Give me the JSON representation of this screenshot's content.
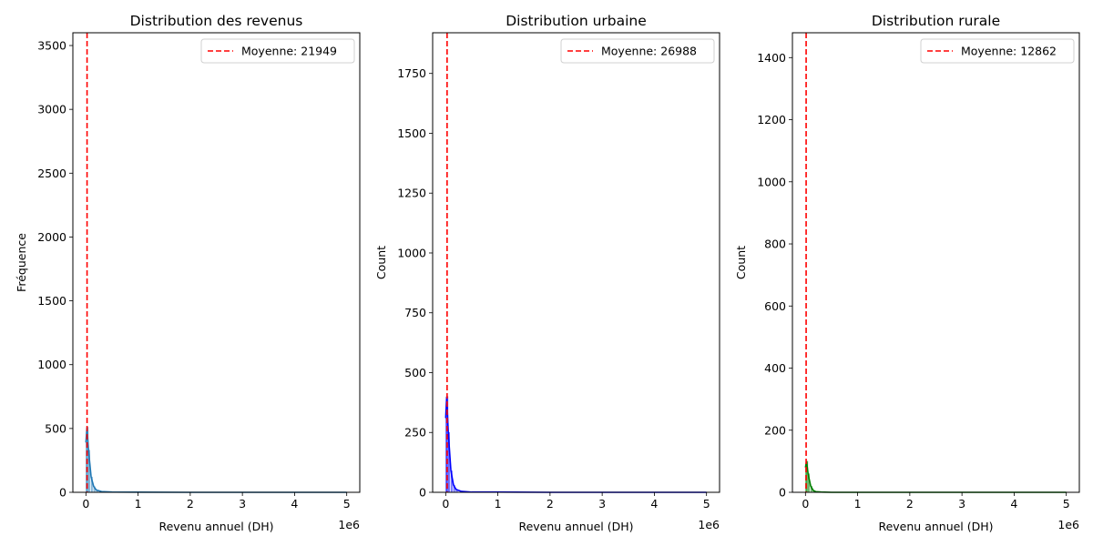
{
  "chart_data": [
    {
      "type": "histogram",
      "title": "Distribution des revenus",
      "xlabel": "Revenu annuel (DH)",
      "ylabel": "Fréquence",
      "x_offset_label": "1e6",
      "xlim": [
        -250000,
        5250000
      ],
      "ylim": [
        0,
        3600
      ],
      "x_ticks": [
        0,
        1000000,
        2000000,
        3000000,
        4000000,
        5000000
      ],
      "x_tick_labels": [
        "0",
        "1",
        "2",
        "3",
        "4",
        "5"
      ],
      "y_ticks": [
        0,
        500,
        1000,
        1500,
        2000,
        2500,
        3000,
        3500
      ],
      "color": "#1f77b4",
      "kde": {
        "x": [
          0,
          20000,
          50000,
          100000,
          150000,
          200000,
          300000,
          500000,
          1000000,
          2000000,
          3000000,
          4000000,
          5000000
        ],
        "y": [
          390,
          510,
          330,
          120,
          45,
          18,
          6,
          2,
          1,
          0,
          0,
          0,
          0
        ]
      },
      "mean_line": {
        "value": 21949,
        "label": "Moyenne: 21949",
        "color": "#ff0000",
        "style": "dashed"
      },
      "legend_position": "top-right",
      "grid": false
    },
    {
      "type": "histogram",
      "title": "Distribution urbaine",
      "xlabel": "Revenu annuel (DH)",
      "ylabel": "Count",
      "x_offset_label": "1e6",
      "xlim": [
        -250000,
        5250000
      ],
      "ylim": [
        0,
        1920
      ],
      "x_ticks": [
        0,
        1000000,
        2000000,
        3000000,
        4000000,
        5000000
      ],
      "x_tick_labels": [
        "0",
        "1",
        "2",
        "3",
        "4",
        "5"
      ],
      "y_ticks": [
        0,
        250,
        500,
        750,
        1000,
        1250,
        1500,
        1750
      ],
      "color": "#0000ff",
      "kde": {
        "x": [
          0,
          20000,
          50000,
          100000,
          150000,
          200000,
          300000,
          500000,
          1000000,
          2000000,
          3000000,
          4000000,
          5000000
        ],
        "y": [
          310,
          400,
          250,
          90,
          30,
          12,
          4,
          1,
          1,
          0,
          0,
          0,
          0
        ]
      },
      "mean_line": {
        "value": 26988,
        "label": "Moyenne: 26988",
        "color": "#ff0000",
        "style": "dashed"
      },
      "legend_position": "top-right",
      "grid": false
    },
    {
      "type": "histogram",
      "title": "Distribution rurale",
      "xlabel": "Revenu annuel (DH)",
      "ylabel": "Count",
      "x_offset_label": "1e6",
      "xlim": [
        -250000,
        5250000
      ],
      "ylim": [
        0,
        1480
      ],
      "x_ticks": [
        0,
        1000000,
        2000000,
        3000000,
        4000000,
        5000000
      ],
      "x_tick_labels": [
        "0",
        "1",
        "2",
        "3",
        "4",
        "5"
      ],
      "y_ticks": [
        0,
        200,
        400,
        600,
        800,
        1000,
        1200,
        1400
      ],
      "color": "#008000",
      "kde": {
        "x": [
          0,
          20000,
          50000,
          100000,
          150000,
          200000,
          300000,
          500000,
          1000000,
          2000000,
          3000000,
          4000000,
          5000000
        ],
        "y": [
          80,
          100,
          60,
          20,
          6,
          2,
          1,
          0,
          0,
          0,
          0,
          0,
          0
        ]
      },
      "mean_line": {
        "value": 12862,
        "label": "Moyenne: 12862",
        "color": "#ff0000",
        "style": "dashed"
      },
      "legend_position": "top-right",
      "grid": false
    }
  ]
}
